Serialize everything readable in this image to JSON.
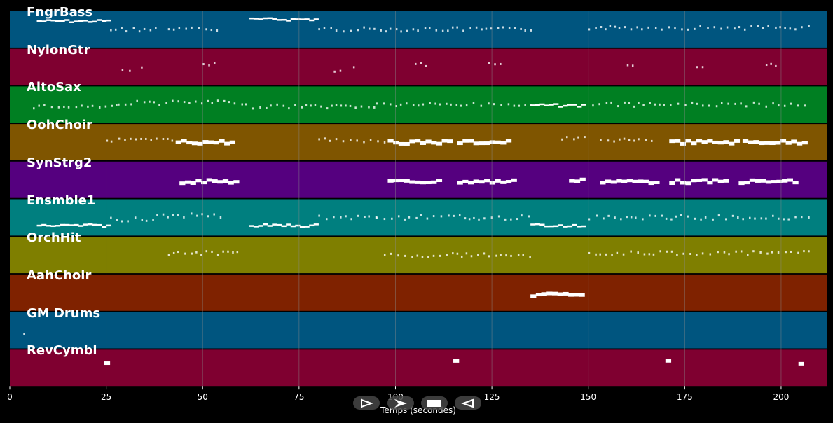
{
  "chart_data": {
    "type": "piano-roll",
    "xlabel": "Temps (secondes)",
    "xlim": [
      0,
      212
    ],
    "x_ticks": [
      0,
      25,
      50,
      75,
      100,
      125,
      150,
      175,
      200
    ],
    "tracks": [
      {
        "name": "FngrBass",
        "color": "#00557f",
        "segments": [
          [
            7,
            26,
            0.25,
            "line"
          ],
          [
            26,
            38,
            0.5,
            "dot"
          ],
          [
            41,
            55,
            0.5,
            "dot"
          ],
          [
            62,
            80,
            0.2,
            "line"
          ],
          [
            80,
            95,
            0.5,
            "dot"
          ],
          [
            96,
            135,
            0.5,
            "dot"
          ],
          [
            150,
            208,
            0.45,
            "dot"
          ]
        ]
      },
      {
        "name": "NylonGtr",
        "color": "#7f0030",
        "segments": [
          [
            29,
            31,
            0.6,
            "dot"
          ],
          [
            34,
            35,
            0.55,
            "dot"
          ],
          [
            50,
            53,
            0.45,
            "dot"
          ],
          [
            84,
            86,
            0.6,
            "dot"
          ],
          [
            89,
            90,
            0.55,
            "dot"
          ],
          [
            105,
            108,
            0.45,
            "dot"
          ],
          [
            124,
            127,
            0.45,
            "dot"
          ],
          [
            160,
            163,
            0.45,
            "dot"
          ],
          [
            178,
            181,
            0.45,
            "dot"
          ],
          [
            196,
            199,
            0.45,
            "dot"
          ]
        ]
      },
      {
        "name": "AltoSax",
        "color": "#007f22",
        "segments": [
          [
            6,
            28,
            0.55,
            "dot"
          ],
          [
            28,
            61,
            0.45,
            "dot"
          ],
          [
            61,
            95,
            0.55,
            "dot"
          ],
          [
            95,
            135,
            0.5,
            "dot"
          ],
          [
            135,
            149,
            0.5,
            "line"
          ],
          [
            151,
            207,
            0.5,
            "dot"
          ]
        ]
      },
      {
        "name": "OohChoir",
        "color": "#7f5500",
        "segments": [
          [
            25,
            42,
            0.45,
            "dot"
          ],
          [
            43,
            58,
            0.5,
            "block"
          ],
          [
            80,
            98,
            0.45,
            "dot"
          ],
          [
            98,
            114,
            0.5,
            "block"
          ],
          [
            116,
            130,
            0.5,
            "block"
          ],
          [
            143,
            149,
            0.4,
            "dot"
          ],
          [
            153,
            168,
            0.45,
            "dot"
          ],
          [
            171,
            188,
            0.5,
            "block"
          ],
          [
            190,
            206,
            0.5,
            "block"
          ]
        ]
      },
      {
        "name": "SynStrg2",
        "color": "#55007f",
        "segments": [
          [
            44,
            58,
            0.55,
            "block"
          ],
          [
            98,
            112,
            0.55,
            "block"
          ],
          [
            116,
            131,
            0.55,
            "block"
          ],
          [
            145,
            149,
            0.5,
            "block"
          ],
          [
            153,
            168,
            0.55,
            "block"
          ],
          [
            171,
            186,
            0.55,
            "block"
          ],
          [
            189,
            204,
            0.55,
            "block"
          ]
        ]
      },
      {
        "name": "Ensmble1",
        "color": "#007f7f",
        "segments": [
          [
            7,
            26,
            0.7,
            "line"
          ],
          [
            26,
            38,
            0.55,
            "dot"
          ],
          [
            38,
            55,
            0.45,
            "dot"
          ],
          [
            62,
            80,
            0.7,
            "line"
          ],
          [
            80,
            95,
            0.5,
            "dot"
          ],
          [
            95,
            135,
            0.5,
            "dot"
          ],
          [
            135,
            149,
            0.7,
            "line"
          ],
          [
            150,
            208,
            0.5,
            "dot"
          ]
        ]
      },
      {
        "name": "OrchHit",
        "color": "#7f7f00",
        "segments": [
          [
            41,
            60,
            0.45,
            "dot"
          ],
          [
            97,
            135,
            0.5,
            "dot"
          ],
          [
            150,
            208,
            0.45,
            "dot"
          ]
        ]
      },
      {
        "name": "AahChoir",
        "color": "#7f2200",
        "segments": [
          [
            135,
            149,
            0.55,
            "block"
          ]
        ]
      },
      {
        "name": "GM Drums",
        "color": "#00557f",
        "segments": [
          [
            3.5,
            4.5,
            0.65,
            "dot"
          ]
        ]
      },
      {
        "name": "RevCymbl",
        "color": "#7f0030",
        "segments": [
          [
            24.5,
            25.5,
            0.35,
            "block"
          ],
          [
            115,
            116,
            0.35,
            "block"
          ],
          [
            170,
            171,
            0.35,
            "block"
          ],
          [
            204.5,
            205.5,
            0.35,
            "block"
          ]
        ]
      }
    ]
  },
  "controls": [
    {
      "name": "play-outline-icon",
      "glyph": "play-outline"
    },
    {
      "name": "play-filled-icon",
      "glyph": "play-filled"
    },
    {
      "name": "stop-icon",
      "glyph": "stop"
    },
    {
      "name": "back-icon",
      "glyph": "back"
    }
  ],
  "colors": {
    "background": "#000000",
    "grid": "#8a8a8a",
    "note": "#ffffff"
  }
}
